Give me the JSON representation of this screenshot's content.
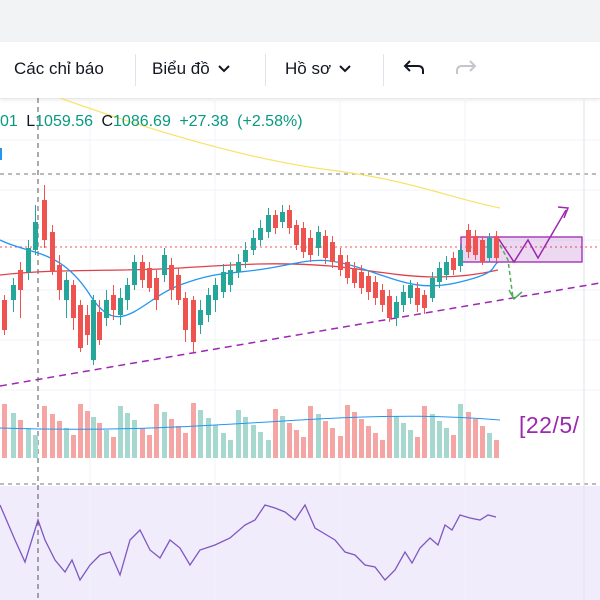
{
  "toolbar": {
    "indicators_label": "Các chỉ báo",
    "chart_label": "Biểu đồ",
    "profile_label": "Hồ sơ"
  },
  "legend": {
    "open_partial": "01",
    "low_key": "L",
    "low_value": "1059.56",
    "close_key": "C",
    "close_value": "1086.69",
    "change": "+27.38",
    "change_pct": "(+2.58%)"
  },
  "annotation": {
    "date_label": "[22/5/"
  },
  "colors": {
    "up": "#26a69a",
    "down": "#ef5350",
    "ma_fast": "#2196f3",
    "ma_slow": "#e0404b",
    "ma_long": "#f7e36a",
    "trendline": "#9c27b0",
    "rsi": "#7e57c2",
    "projection_down": "#4caf50",
    "legend_text": "#089981"
  },
  "icons": [
    "chevron-down-icon",
    "undo-icon",
    "redo-icon"
  ]
}
